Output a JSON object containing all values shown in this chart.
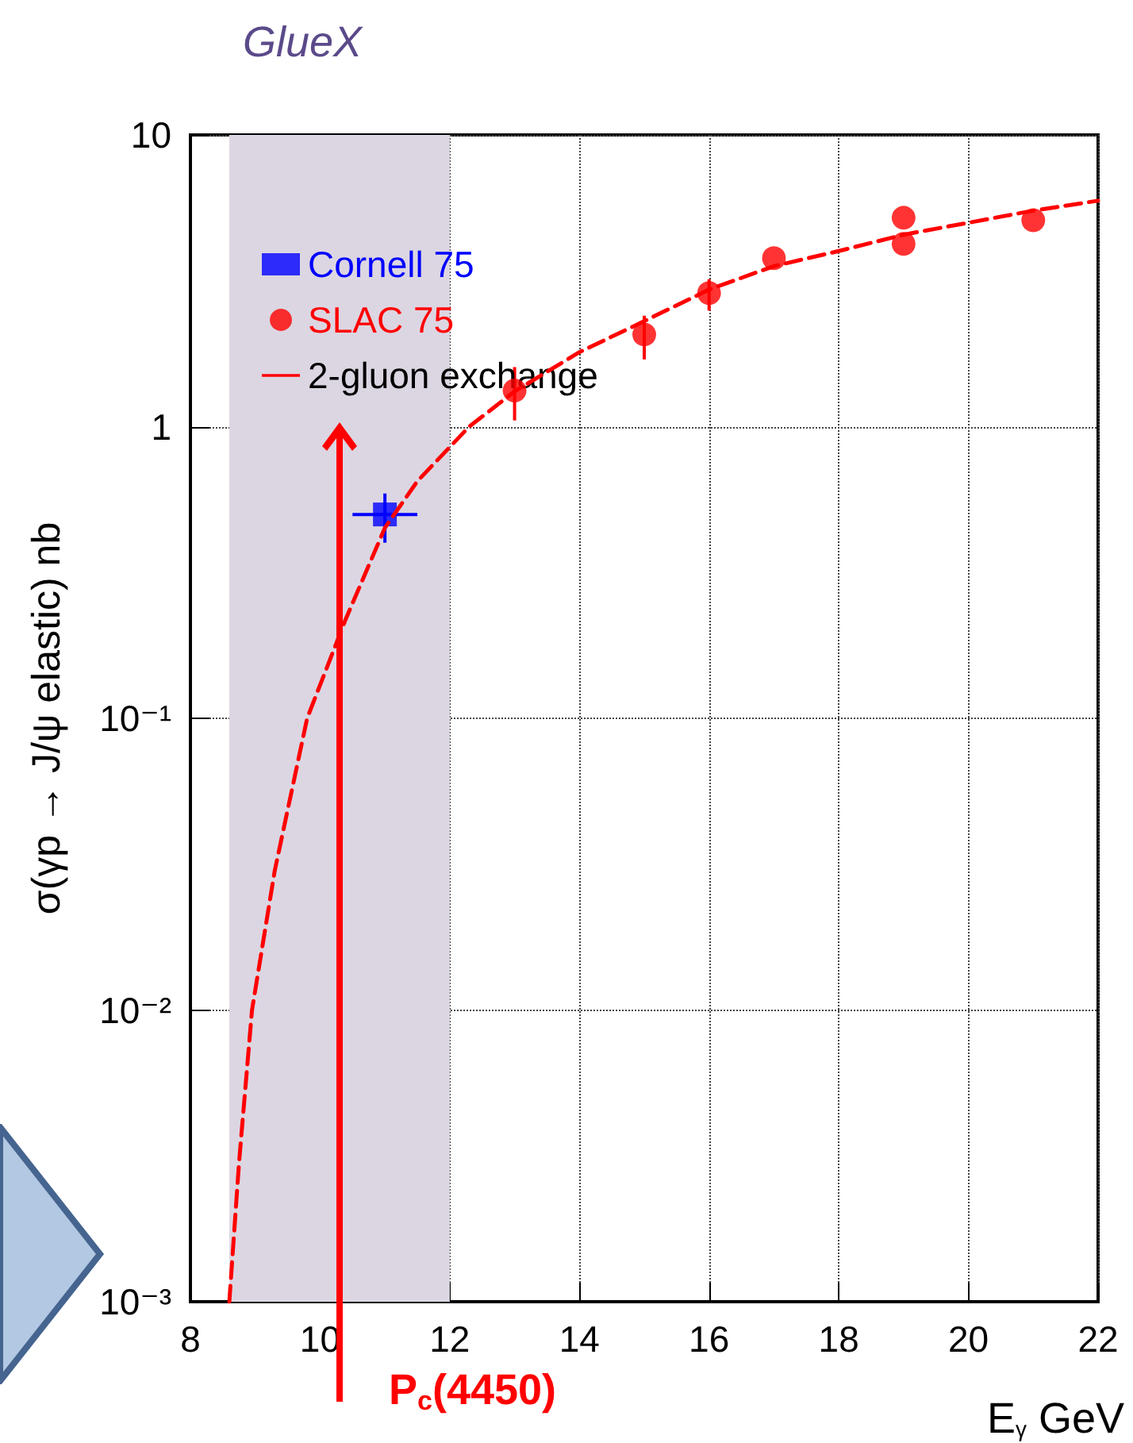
{
  "chart_data": {
    "type": "scatter",
    "title": "GlueX",
    "xlabel": "E$_{γ}$ GeV",
    "ylabel": "σ(γp → J/ψ elastic) nb",
    "xlim": [
      8,
      22
    ],
    "xticks": [
      8,
      10,
      12,
      14,
      16,
      18,
      20,
      22
    ],
    "ylim": [
      0.001,
      10
    ],
    "log": "y",
    "yticks": [
      {
        "value": 0.001,
        "label": "10⁻³"
      },
      {
        "value": 0.01,
        "label": "10⁻²"
      },
      {
        "value": 0.1,
        "label": "10⁻¹"
      },
      1,
      10
    ],
    "grid": true,
    "legend": "top left",
    "series": [
      {
        "name": "Cornell 75",
        "color": "#0000ff",
        "marker": "square",
        "x": [
          11
        ],
        "values": [
          0.5
        ],
        "errors": [
          [
            0.4,
            0.59
          ]
        ],
        "xerrors": [
          0.5
        ]
      },
      {
        "name": "SLAC 75",
        "color": "#ff0000",
        "marker": "circle",
        "x": [
          13,
          15,
          16,
          17,
          19,
          19,
          21
        ],
        "values": [
          1.33,
          2.07,
          2.87,
          3.78,
          5.2,
          4.23,
          5.1
        ],
        "errors": [
          [
            1.05,
            1.6
          ],
          [
            1.7,
            2.4
          ],
          [
            2.5,
            3.2
          ],
          null,
          null,
          null,
          null
        ]
      },
      {
        "name": "2-gluon exchange",
        "type": "line",
        "color": "#ff0000",
        "marker": "none",
        "line_style": "dashed",
        "x": [
          8.6,
          8.75,
          8.95,
          9.3,
          9.8,
          10.4,
          11,
          11.5,
          12.3,
          13,
          14,
          15,
          16,
          17,
          18,
          19,
          20,
          21,
          22
        ],
        "values": [
          0.001,
          0.003,
          0.01,
          0.03,
          0.1,
          0.22,
          0.45,
          0.65,
          1,
          1.32,
          1.8,
          2.3,
          2.95,
          3.55,
          4.0,
          4.55,
          5.0,
          5.5,
          5.95
        ]
      }
    ],
    "bands": [
      {
        "axis": "x",
        "from": 8.6,
        "to": 12,
        "color": "#dcd6e2"
      }
    ],
    "annotations": [
      "P$_{c}$(4450)"
    ]
  }
}
